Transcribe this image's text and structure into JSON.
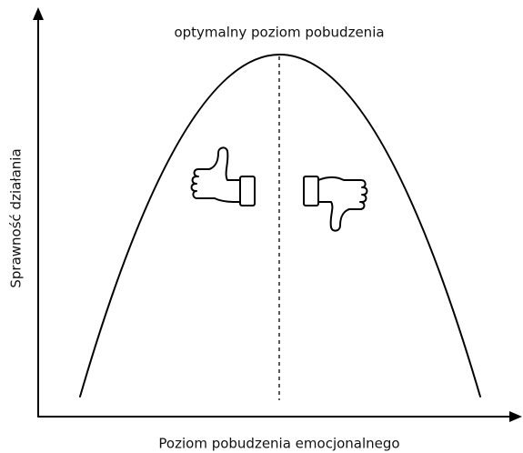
{
  "diagram": {
    "peak_label": "optymalny poziom pobudzenia",
    "y_axis_label": "Sprawność działania",
    "x_axis_label": "Poziom pobudzenia emocjonalnego"
  }
}
